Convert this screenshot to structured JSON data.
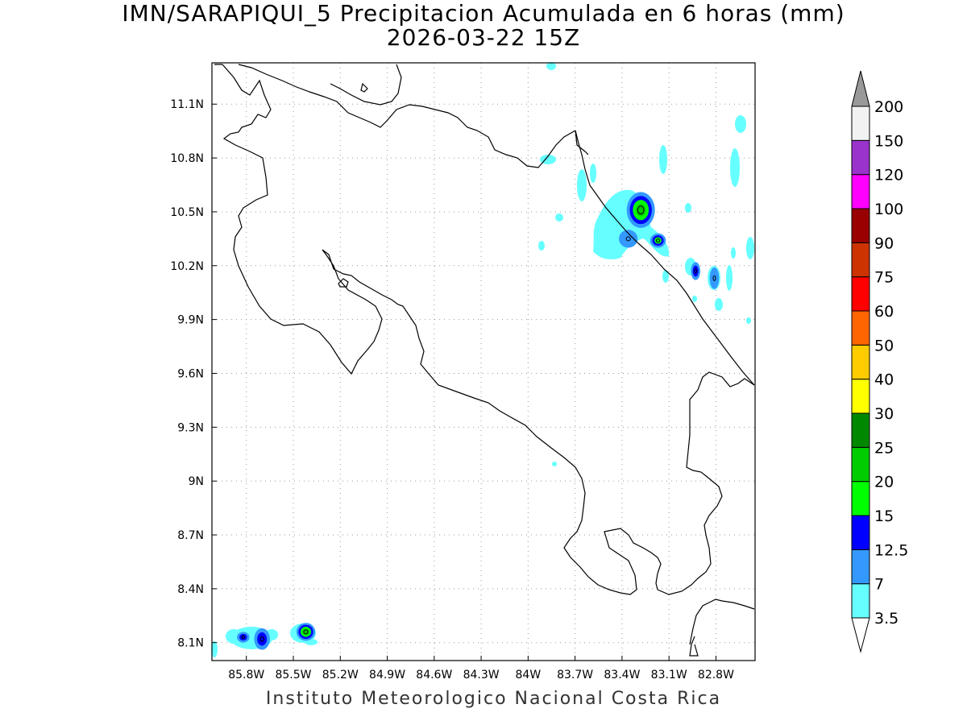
{
  "title": {
    "line1": "IMN/SARAPIQUI_5 Precipitacion Acumulada en 6 horas (mm)",
    "line2": "2026-03-22 15Z"
  },
  "footer": "Instituto Meteorologico Nacional Costa Rica",
  "map": {
    "lon_range": [
      -86.02,
      -82.55
    ],
    "lat_range": [
      8.0,
      11.33
    ],
    "lon_ticks": [
      "85.8W",
      "85.5W",
      "85.2W",
      "84.9W",
      "84.6W",
      "84.3W",
      "84W",
      "83.7W",
      "83.4W",
      "83.1W",
      "82.8W"
    ],
    "lon_tick_values": [
      -85.8,
      -85.5,
      -85.2,
      -84.9,
      -84.6,
      -84.3,
      -84.0,
      -83.7,
      -83.4,
      -83.1,
      -82.8
    ],
    "lat_ticks": [
      "8.1N",
      "8.4N",
      "8.7N",
      "9N",
      "9.3N",
      "9.6N",
      "9.9N",
      "10.2N",
      "10.5N",
      "10.8N",
      "11.1N"
    ],
    "lat_tick_values": [
      8.1,
      8.4,
      8.7,
      9.0,
      9.3,
      9.6,
      9.9,
      10.2,
      10.5,
      10.8,
      11.1
    ],
    "grid": true
  },
  "colorbar": {
    "labels": [
      "3.5",
      "7",
      "12.5",
      "15",
      "20",
      "25",
      "30",
      "40",
      "50",
      "60",
      "75",
      "90",
      "100",
      "120",
      "150",
      "200"
    ],
    "colors": [
      "#66ffff",
      "#3399ff",
      "#0000ff",
      "#00ff00",
      "#00cc00",
      "#008800",
      "#ffff00",
      "#ffcc00",
      "#ff6600",
      "#ff0000",
      "#cc3300",
      "#990000",
      "#ff00ff",
      "#9933cc",
      "#f2f2f2",
      "#999999"
    ]
  },
  "precip_cells": [
    {
      "lon": -83.28,
      "lat": 10.51,
      "rx": 0.09,
      "ry": 0.1,
      "level": 4
    },
    {
      "lon": -83.36,
      "lat": 10.35,
      "rx": 0.06,
      "ry": 0.05,
      "level": 1
    },
    {
      "lon": -83.17,
      "lat": 10.34,
      "rx": 0.05,
      "ry": 0.04,
      "level": 3
    },
    {
      "lon": -82.93,
      "lat": 10.17,
      "rx": 0.03,
      "ry": 0.05,
      "level": 2
    },
    {
      "lon": -82.81,
      "lat": 10.13,
      "rx": 0.03,
      "ry": 0.06,
      "level": 1
    },
    {
      "lon": -85.82,
      "lat": 8.13,
      "rx": 0.04,
      "ry": 0.03,
      "level": 2
    },
    {
      "lon": -85.7,
      "lat": 8.12,
      "rx": 0.05,
      "ry": 0.06,
      "level": 2
    },
    {
      "lon": -85.42,
      "lat": 8.16,
      "rx": 0.06,
      "ry": 0.05,
      "level": 4
    }
  ]
}
